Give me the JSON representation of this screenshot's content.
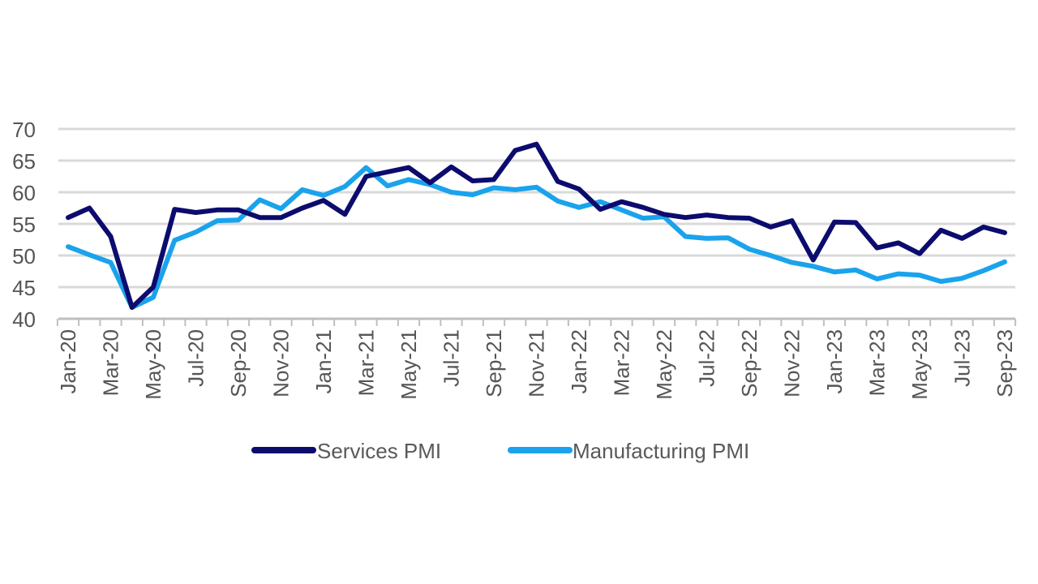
{
  "chart_data": {
    "type": "line",
    "title": "",
    "xlabel": "",
    "ylabel": "",
    "ylim": [
      40,
      70
    ],
    "yticks": [
      40,
      45,
      50,
      55,
      60,
      65,
      70
    ],
    "grid": true,
    "legend_position": "bottom",
    "x": [
      "Jan-20",
      "Feb-20",
      "Mar-20",
      "Apr-20",
      "May-20",
      "Jun-20",
      "Jul-20",
      "Aug-20",
      "Sep-20",
      "Oct-20",
      "Nov-20",
      "Dec-20",
      "Jan-21",
      "Feb-21",
      "Mar-21",
      "Apr-21",
      "May-21",
      "Jun-21",
      "Jul-21",
      "Aug-21",
      "Sep-21",
      "Oct-21",
      "Nov-21",
      "Dec-21",
      "Jan-22",
      "Feb-22",
      "Mar-22",
      "Apr-22",
      "May-22",
      "Jun-22",
      "Jul-22",
      "Aug-22",
      "Sep-22",
      "Oct-22",
      "Nov-22",
      "Dec-22",
      "Jan-23",
      "Feb-23",
      "Mar-23",
      "Apr-23",
      "May-23",
      "Jun-23",
      "Jul-23",
      "Aug-23",
      "Sep-23"
    ],
    "xtick_labels": [
      "Jan-20",
      "Mar-20",
      "May-20",
      "Jul-20",
      "Sep-20",
      "Nov-20",
      "Jan-21",
      "Mar-21",
      "May-21",
      "Jul-21",
      "Sep-21",
      "Nov-21",
      "Jan-22",
      "Mar-22",
      "May-22",
      "Jul-22",
      "Sep-22",
      "Nov-22",
      "Jan-23",
      "Mar-23",
      "May-23",
      "Jul-23",
      "Sep-23"
    ],
    "series": [
      {
        "name": "Services PMI",
        "color": "#0c0c6e",
        "values": [
          56.0,
          57.5,
          53.0,
          41.8,
          45.0,
          57.3,
          56.8,
          57.2,
          57.2,
          56.0,
          56.0,
          57.5,
          58.7,
          56.5,
          62.5,
          63.2,
          63.9,
          61.5,
          64.0,
          61.8,
          62.0,
          66.6,
          67.6,
          61.7,
          60.5,
          57.3,
          58.5,
          57.6,
          56.5,
          56.0,
          56.4,
          56.0,
          55.9,
          54.5,
          55.5,
          49.3,
          55.3,
          55.2,
          51.2,
          52.0,
          50.3,
          54.0,
          52.7,
          54.5,
          53.6
        ]
      },
      {
        "name": "Manufacturing PMI",
        "color": "#1aa3ec",
        "values": [
          51.4,
          50.1,
          48.9,
          41.8,
          43.4,
          52.4,
          53.7,
          55.5,
          55.6,
          58.8,
          57.4,
          60.4,
          59.5,
          60.9,
          63.9,
          61.0,
          62.0,
          61.2,
          60.0,
          59.6,
          60.7,
          60.4,
          60.8,
          58.6,
          57.6,
          58.5,
          57.2,
          55.9,
          56.1,
          53.0,
          52.7,
          52.8,
          51.0,
          50.0,
          48.9,
          48.3,
          47.4,
          47.7,
          46.3,
          47.1,
          46.9,
          45.9,
          46.4,
          47.6,
          49.0
        ]
      }
    ]
  }
}
